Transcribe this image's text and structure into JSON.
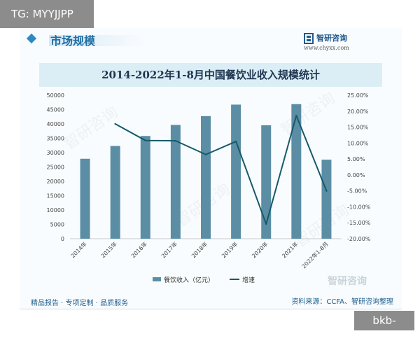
{
  "overlay": {
    "tag": "TG: MYYJJPP",
    "site": "bkb-mk.com"
  },
  "header": {
    "section_title": "市场规模",
    "brand_name": "智研咨询",
    "brand_url": "www.chyxx.com"
  },
  "footer": {
    "left_text": "精品报告 · 专项定制 · 品质服务",
    "right_text": "资料来源：CCFA、智研咨询整理"
  },
  "watermark": {
    "text": "智研咨询"
  },
  "colors": {
    "bar": "#5b8ea4",
    "line": "#16596b",
    "accent": "#2f88c0",
    "band": "#dbeef6"
  },
  "chart_data": {
    "type": "bar+line",
    "title": "2014-2022年1-8月中国餐饮业收入规模统计",
    "categories": [
      "2014年",
      "2015年",
      "2016年",
      "2017年",
      "2018年",
      "2019年",
      "2020年",
      "2021年",
      "2022年1-8月"
    ],
    "series": [
      {
        "name": "餐饮收入（亿元）",
        "type": "bar",
        "axis": "left",
        "values": [
          27860,
          32310,
          35799,
          39644,
          42716,
          46721,
          39527,
          46895,
          27537
        ]
      },
      {
        "name": "增速",
        "type": "line",
        "axis": "right",
        "values": [
          null,
          16.0,
          10.8,
          10.7,
          6.4,
          10.5,
          -15.4,
          18.6,
          -5.0
        ]
      }
    ],
    "y_left": {
      "min": 0,
      "max": 50000,
      "step": 5000,
      "tick_labels": [
        "0",
        "5000",
        "10000",
        "15000",
        "20000",
        "25000",
        "30000",
        "35000",
        "40000",
        "45000",
        "50000"
      ]
    },
    "y_right": {
      "min": -20,
      "max": 25,
      "step": 5,
      "tick_labels": [
        "-20.00%",
        "-15.00%",
        "-10.00%",
        "-5.00%",
        "0.00%",
        "5.00%",
        "10.00%",
        "15.00%",
        "20.00%",
        "25.00%"
      ]
    },
    "grid": false,
    "legend": {
      "position": "bottom",
      "items": [
        "餐饮收入（亿元）",
        "增速"
      ]
    }
  }
}
